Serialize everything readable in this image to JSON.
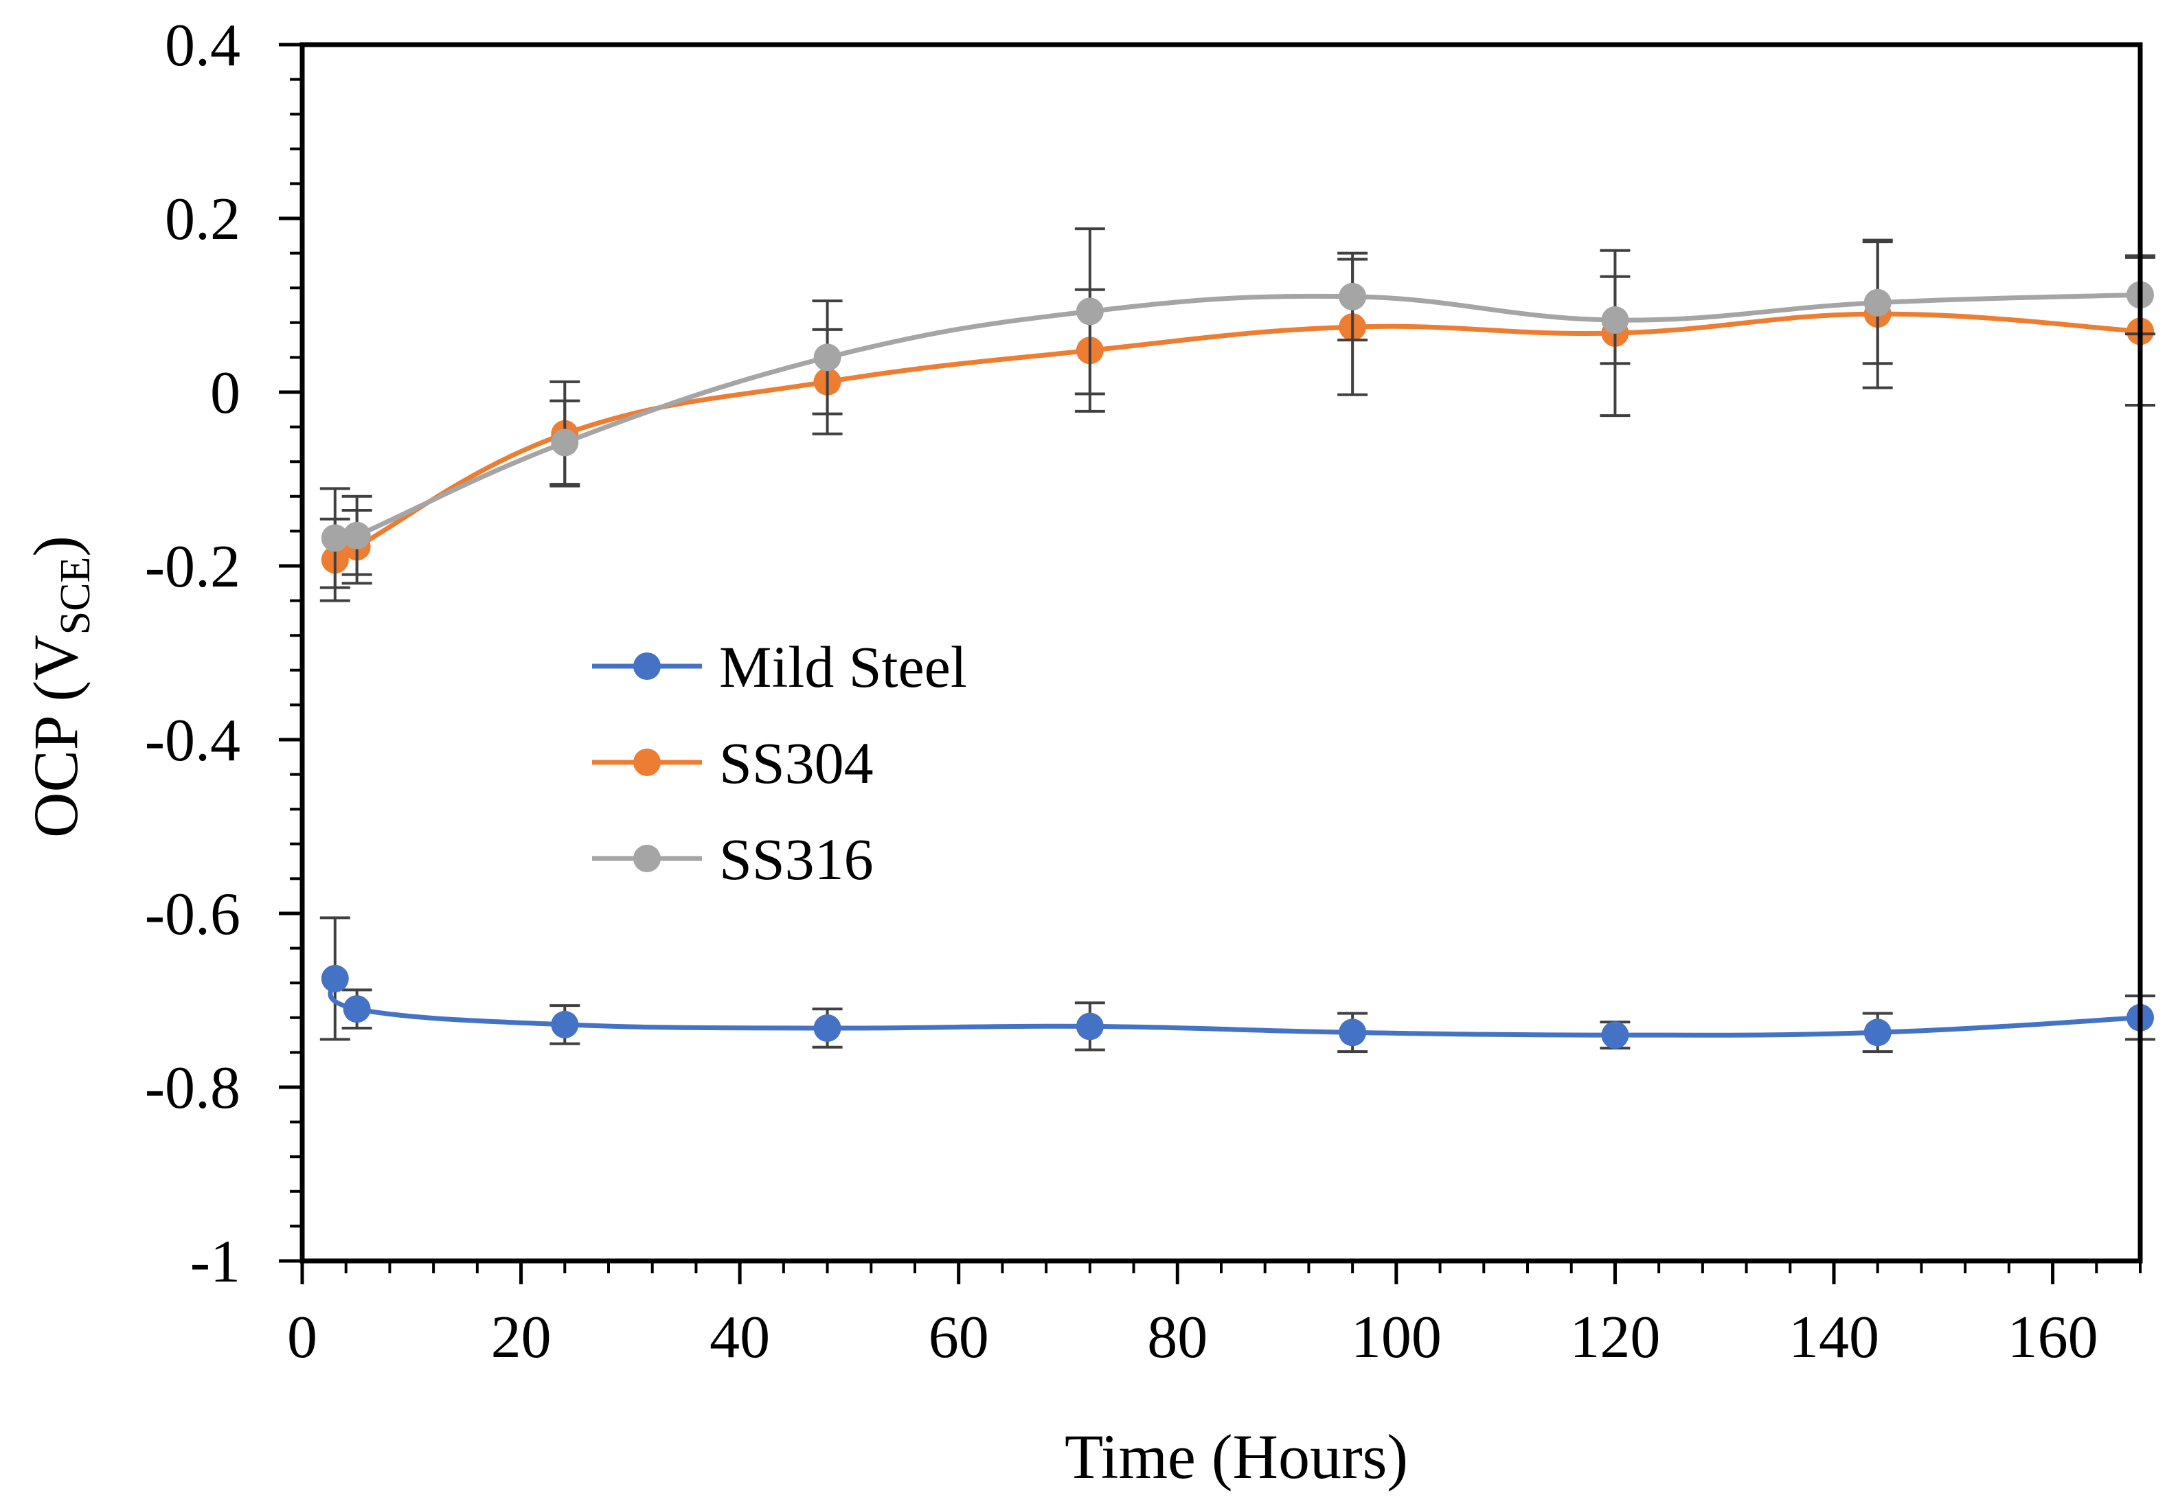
{
  "chart_data": {
    "type": "line",
    "title": "",
    "xlabel": "Time (Hours)",
    "ylabel": {
      "main": "OCP (V",
      "sub": "SCE",
      "close": ")"
    },
    "xlim": [
      0,
      168
    ],
    "ylim": [
      -1,
      0.4
    ],
    "x_ticks": [
      0,
      20,
      40,
      60,
      80,
      100,
      120,
      140,
      160
    ],
    "x_tick_labels": [
      "0",
      "20",
      "40",
      "60",
      "80",
      "100",
      "120",
      "140",
      "160"
    ],
    "y_ticks": [
      0.4,
      0.2,
      0,
      -0.2,
      -0.4,
      -0.6,
      -0.8,
      -1
    ],
    "y_tick_labels": [
      "0.4",
      "0.2",
      "0",
      "-0.2",
      "-0.4",
      "-0.6",
      "-0.8",
      "-1"
    ],
    "x_minor_step": 4,
    "y_minor_step": 0.04,
    "grid": false,
    "legend_position": "center-left",
    "x": [
      3,
      5,
      24,
      48,
      72,
      96,
      120,
      144,
      168
    ],
    "series": [
      {
        "name": "Mild Steel",
        "color": "#4472C4",
        "values": [
          -0.675,
          -0.71,
          -0.728,
          -0.732,
          -0.73,
          -0.737,
          -0.74,
          -0.737,
          -0.72
        ],
        "errors": [
          0.07,
          0.022,
          0.022,
          0.022,
          0.027,
          0.022,
          0.015,
          0.022,
          0.025
        ]
      },
      {
        "name": "SS304",
        "color": "#ED7D31",
        "values": [
          -0.193,
          -0.178,
          -0.048,
          0.012,
          0.048,
          0.075,
          0.068,
          0.09,
          0.07
        ],
        "errors": [
          0.047,
          0.042,
          0.06,
          0.06,
          0.07,
          0.078,
          0.095,
          0.085,
          0.085
        ]
      },
      {
        "name": "SS316",
        "color": "#A5A5A5",
        "values": [
          -0.168,
          -0.165,
          -0.058,
          0.04,
          0.093,
          0.11,
          0.083,
          0.103,
          0.112
        ],
        "errors": [
          0.057,
          0.045,
          0.048,
          0.065,
          0.095,
          0.05,
          0.05,
          0.07,
          0.045
        ]
      }
    ]
  }
}
